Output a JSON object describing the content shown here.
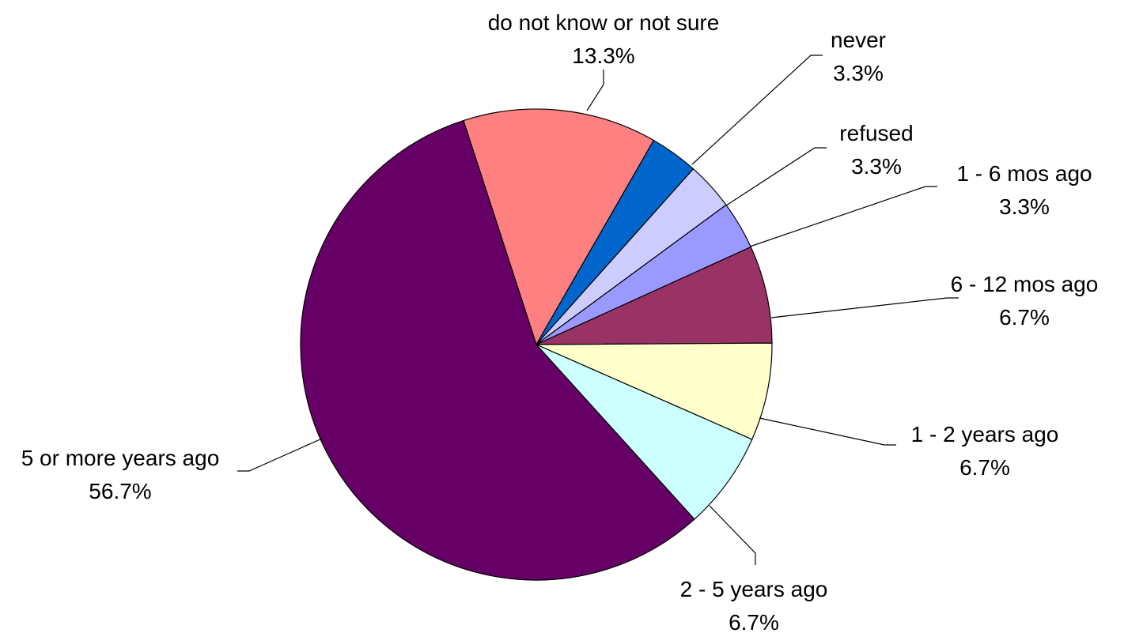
{
  "chart_data": {
    "type": "pie",
    "title": "",
    "slices": [
      {
        "label": "do not know or not sure",
        "value_label": "13.3%",
        "value": 13.3,
        "color": "#FF8080"
      },
      {
        "label": "never",
        "value_label": "3.3%",
        "value": 3.3,
        "color": "#0066CC"
      },
      {
        "label": "refused",
        "value_label": "3.3%",
        "value": 3.3,
        "color": "#CCCCFF"
      },
      {
        "label": "1 - 6 mos ago",
        "value_label": "3.3%",
        "value": 3.3,
        "color": "#9999FF"
      },
      {
        "label": "6 - 12 mos ago",
        "value_label": "6.7%",
        "value": 6.7,
        "color": "#993366"
      },
      {
        "label": "1 - 2 years ago",
        "value_label": "6.7%",
        "value": 6.7,
        "color": "#FFFFCC"
      },
      {
        "label": "2 - 5 years ago",
        "value_label": "6.7%",
        "value": 6.7,
        "color": "#CCFFFF"
      },
      {
        "label": "5 or more years ago",
        "value_label": "56.7%",
        "value": 56.7,
        "color": "#660066"
      }
    ]
  }
}
